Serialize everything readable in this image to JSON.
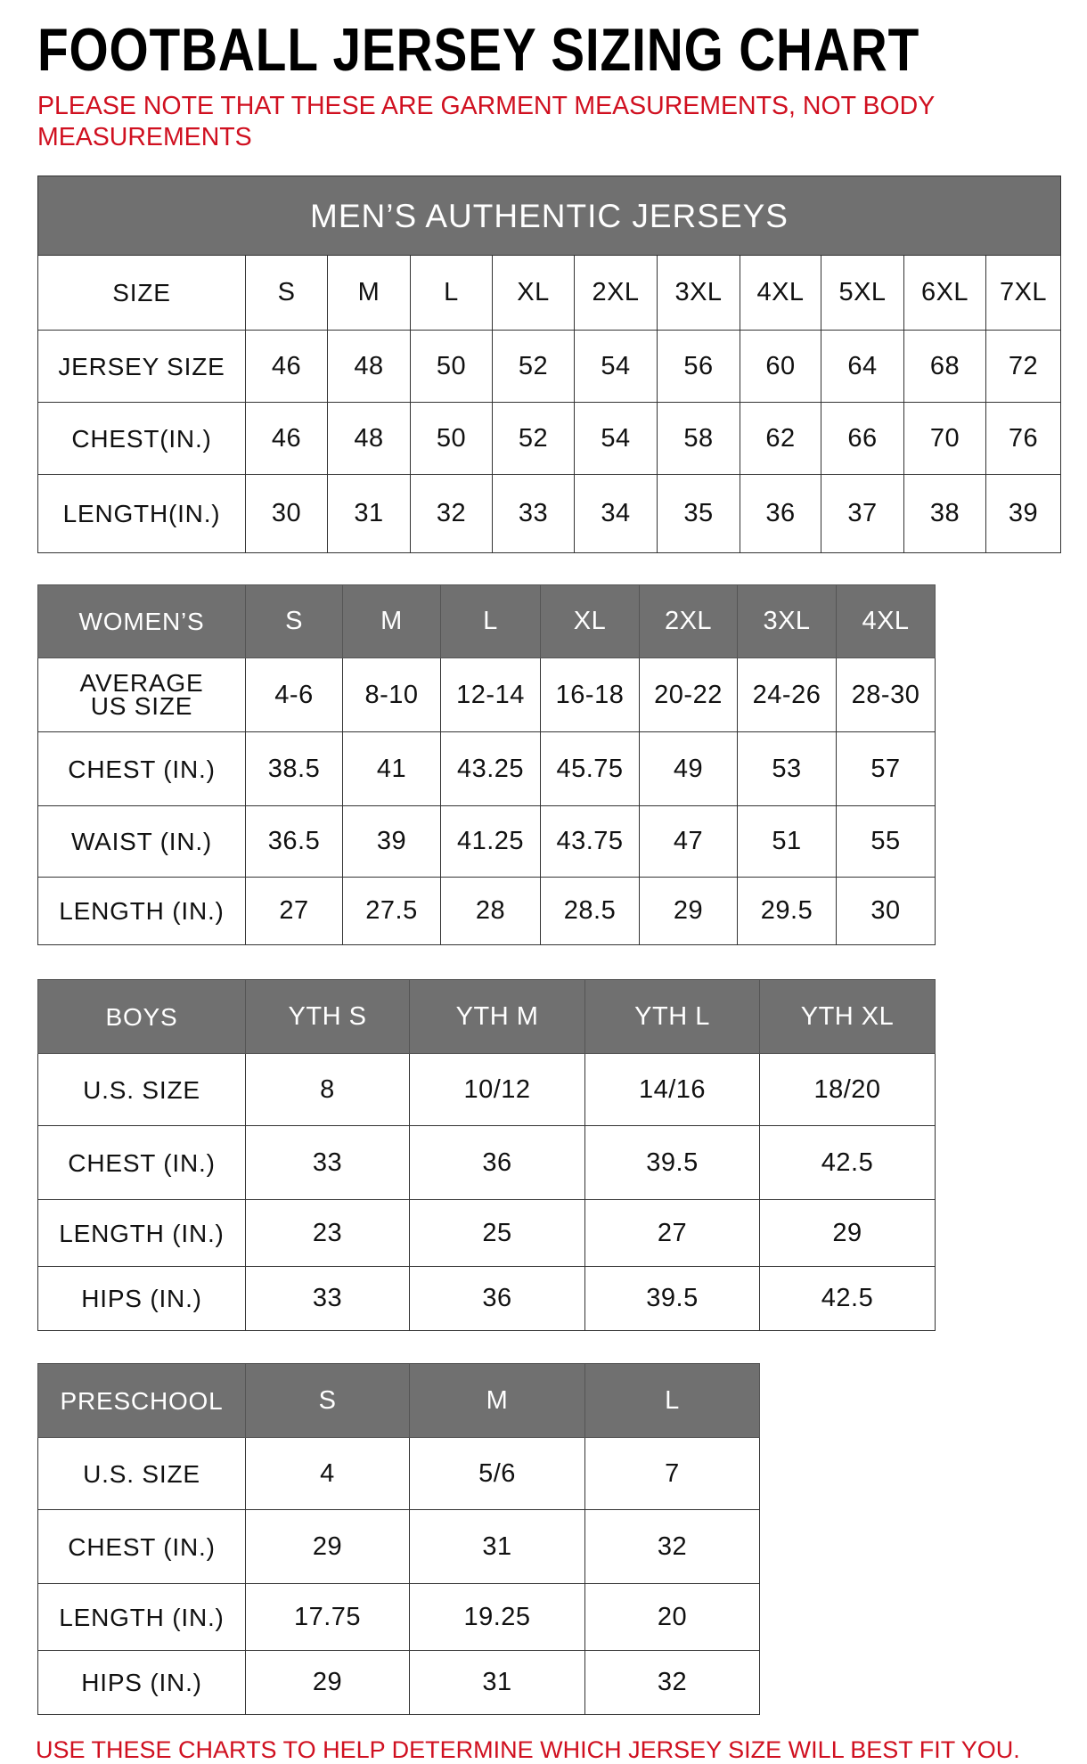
{
  "title": "FOOTBALL JERSEY SIZING CHART",
  "note": "PLEASE NOTE THAT THESE ARE GARMENT MEASUREMENTS, NOT BODY MEASUREMENTS",
  "footer": "USE THESE CHARTS TO HELP DETERMINE WHICH JERSEY SIZE WILL BEST FIT YOU.",
  "colors": {
    "header_bg": "#707070",
    "note_red": "#d01020"
  },
  "tables": [
    {
      "id": "mens",
      "caption": "MEN’S AUTHENTIC JERSEYS",
      "header": [
        "SIZE",
        "S",
        "M",
        "L",
        "XL",
        "2XL",
        "3XL",
        "4XL",
        "5XL",
        "6XL",
        "7XL"
      ],
      "header_style": "plain",
      "rows": [
        [
          "JERSEY SIZE",
          "46",
          "48",
          "50",
          "52",
          "54",
          "56",
          "60",
          "64",
          "68",
          "72"
        ],
        [
          "CHEST(IN.)",
          "46",
          "48",
          "50",
          "52",
          "54",
          "58",
          "62",
          "66",
          "70",
          "76"
        ],
        [
          "LENGTH(IN.)",
          "30",
          "31",
          "32",
          "33",
          "34",
          "35",
          "36",
          "37",
          "38",
          "39"
        ]
      ]
    },
    {
      "id": "womens",
      "header": [
        "WOMEN’S",
        "S",
        "M",
        "L",
        "XL",
        "2XL",
        "3XL",
        "4XL"
      ],
      "header_style": "dark",
      "rows": [
        [
          "AVERAGE US SIZE",
          "4-6",
          "8-10",
          "12-14",
          "16-18",
          "20-22",
          "24-26",
          "28-30"
        ],
        [
          "CHEST (IN.)",
          "38.5",
          "41",
          "43.25",
          "45.75",
          "49",
          "53",
          "57"
        ],
        [
          "WAIST (IN.)",
          "36.5",
          "39",
          "41.25",
          "43.75",
          "47",
          "51",
          "55"
        ],
        [
          "LENGTH (IN.)",
          "27",
          "27.5",
          "28",
          "28.5",
          "29",
          "29.5",
          "30"
        ]
      ]
    },
    {
      "id": "boys",
      "header": [
        "BOYS",
        "YTH S",
        "YTH M",
        "YTH L",
        "YTH XL"
      ],
      "header_style": "dark",
      "rows": [
        [
          "U.S. SIZE",
          "8",
          "10/12",
          "14/16",
          "18/20"
        ],
        [
          "CHEST (IN.)",
          "33",
          "36",
          "39.5",
          "42.5"
        ],
        [
          "LENGTH (IN.)",
          "23",
          "25",
          "27",
          "29"
        ],
        [
          "HIPS (IN.)",
          "33",
          "36",
          "39.5",
          "42.5"
        ]
      ]
    },
    {
      "id": "preschool",
      "header": [
        "PRESCHOOL",
        "S",
        "M",
        "L"
      ],
      "header_style": "dark",
      "rows": [
        [
          "U.S. SIZE",
          "4",
          "5/6",
          "7"
        ],
        [
          "CHEST (IN.)",
          "29",
          "31",
          "32"
        ],
        [
          "LENGTH (IN.)",
          "17.75",
          "19.25",
          "20"
        ],
        [
          "HIPS (IN.)",
          "29",
          "31",
          "32"
        ]
      ]
    }
  ]
}
